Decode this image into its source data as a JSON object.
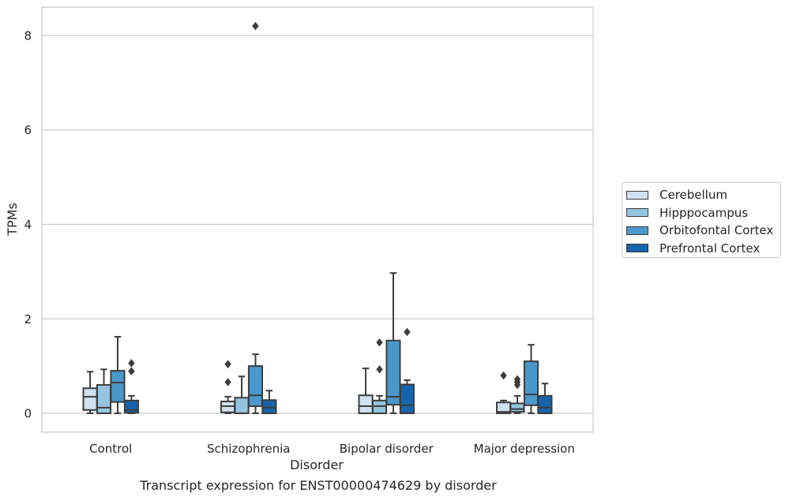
{
  "chart_data": {
    "type": "box",
    "caption": "Transcript expression for ENST00000474629 by disorder",
    "xlabel": "Disorder",
    "ylabel": "TPMs",
    "ylim": [
      -0.4,
      8.6
    ],
    "yticks": [
      0,
      2,
      4,
      6,
      8
    ],
    "grid": "horizontal",
    "legend_placement": "right",
    "categories": [
      "Control",
      "Schizophrenia",
      "Bipolar disorder",
      "Major depression"
    ],
    "series": [
      {
        "name": "Cerebellum",
        "color": "#d0e1f2",
        "boxes": [
          {
            "whisker_low": 0.0,
            "q1": 0.07,
            "median": 0.35,
            "q3": 0.53,
            "whisker_high": 0.88,
            "outliers": []
          },
          {
            "whisker_low": 0.0,
            "q1": 0.02,
            "median": 0.15,
            "q3": 0.25,
            "whisker_high": 0.35,
            "outliers": [
              0.66,
              1.04
            ]
          },
          {
            "whisker_low": 0.0,
            "q1": 0.0,
            "median": 0.15,
            "q3": 0.38,
            "whisker_high": 0.95,
            "outliers": []
          },
          {
            "whisker_low": 0.0,
            "q1": 0.0,
            "median": 0.03,
            "q3": 0.23,
            "whisker_high": 0.27,
            "outliers": [
              0.8
            ]
          }
        ]
      },
      {
        "name": "Hipppocampus",
        "color": "#94c4df",
        "boxes": [
          {
            "whisker_low": 0.0,
            "q1": 0.0,
            "median": 0.12,
            "q3": 0.6,
            "whisker_high": 0.93,
            "outliers": []
          },
          {
            "whisker_low": 0.0,
            "q1": 0.0,
            "median": 0.0,
            "q3": 0.33,
            "whisker_high": 0.78,
            "outliers": []
          },
          {
            "whisker_low": 0.0,
            "q1": 0.0,
            "median": 0.15,
            "q3": 0.27,
            "whisker_high": 0.37,
            "outliers": [
              0.93,
              1.5
            ]
          },
          {
            "whisker_low": 0.0,
            "q1": 0.03,
            "median": 0.09,
            "q3": 0.21,
            "whisker_high": 0.37,
            "outliers": [
              0.6,
              0.66,
              0.72
            ]
          }
        ]
      },
      {
        "name": "Orbitofontal Cortex",
        "color": "#4a98c9",
        "boxes": [
          {
            "whisker_low": 0.0,
            "q1": 0.24,
            "median": 0.65,
            "q3": 0.9,
            "whisker_high": 1.62,
            "outliers": []
          },
          {
            "whisker_low": 0.0,
            "q1": 0.15,
            "median": 0.38,
            "q3": 1.0,
            "whisker_high": 1.25,
            "outliers": [
              8.2
            ]
          },
          {
            "whisker_low": 0.0,
            "q1": 0.18,
            "median": 0.35,
            "q3": 1.54,
            "whisker_high": 2.97,
            "outliers": []
          },
          {
            "whisker_low": 0.0,
            "q1": 0.17,
            "median": 0.4,
            "q3": 1.1,
            "whisker_high": 1.45,
            "outliers": []
          }
        ]
      },
      {
        "name": "Prefrontal Cortex",
        "color": "#1764ab",
        "boxes": [
          {
            "whisker_low": 0.0,
            "q1": 0.01,
            "median": 0.07,
            "q3": 0.27,
            "whisker_high": 0.37,
            "outliers": [
              0.89,
              1.06
            ]
          },
          {
            "whisker_low": 0.0,
            "q1": 0.0,
            "median": 0.12,
            "q3": 0.28,
            "whisker_high": 0.48,
            "outliers": []
          },
          {
            "whisker_low": 0.0,
            "q1": 0.0,
            "median": 0.17,
            "q3": 0.61,
            "whisker_high": 0.7,
            "outliers": [
              1.72
            ]
          },
          {
            "whisker_low": 0.0,
            "q1": 0.0,
            "median": 0.12,
            "q3": 0.37,
            "whisker_high": 0.63,
            "outliers": []
          }
        ]
      }
    ]
  }
}
